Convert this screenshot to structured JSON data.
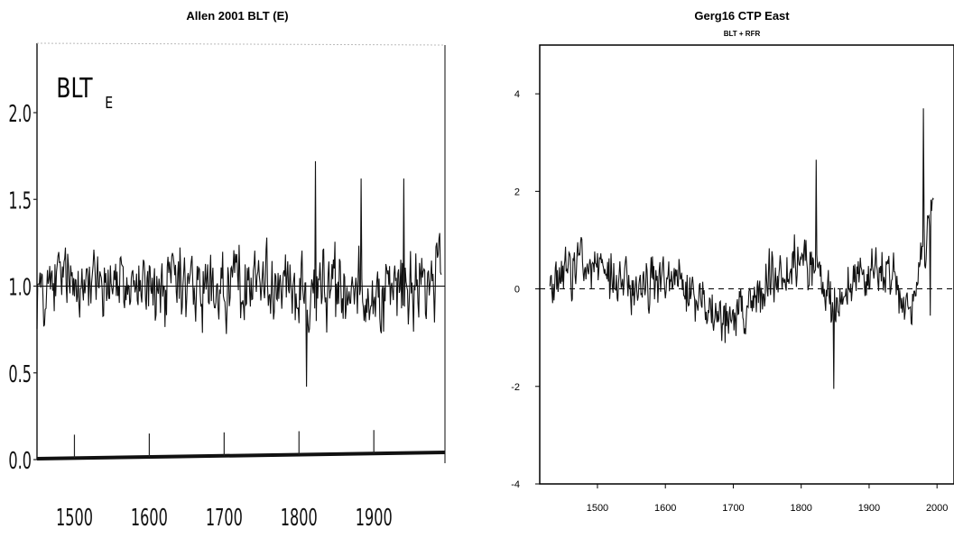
{
  "chart_data": [
    {
      "type": "line",
      "title": "Allen 2001 BLT (E)",
      "annotation": {
        "main": "BLT",
        "subscript": "E"
      },
      "xlim": [
        1450,
        1995
      ],
      "ylim": [
        0.0,
        2.4
      ],
      "x_ticks": [
        1500,
        1600,
        1700,
        1800,
        1900
      ],
      "x_tick_labels": [
        "1500",
        "1600",
        "1700",
        "1800",
        "1900"
      ],
      "y_ticks": [
        0.0,
        0.5,
        1.0,
        1.5,
        2.0
      ],
      "y_tick_labels": [
        "0.0",
        "0.5",
        "1.0",
        "1.5",
        "2.0"
      ],
      "reference_line": 1.0,
      "grid": false,
      "series": [
        {
          "x_range": [
            1450,
            1990
          ],
          "mean": 1.0,
          "amplitude": 0.3,
          "peaks": [
            [
              1822,
              1.72
            ],
            [
              1810,
              0.42
            ],
            [
              1883,
              1.62
            ],
            [
              1940,
              1.62
            ]
          ]
        }
      ]
    },
    {
      "type": "line",
      "title": "Gerg16 CTP East",
      "subtitle": "BLT + RFR",
      "xlim": [
        1415,
        2025
      ],
      "ylim": [
        -4,
        5
      ],
      "x_ticks": [
        1500,
        1600,
        1700,
        1800,
        1900,
        2000
      ],
      "x_tick_labels": [
        "1500",
        "1600",
        "1700",
        "1800",
        "1900",
        "2000"
      ],
      "y_ticks": [
        -4,
        -2,
        0,
        2,
        4
      ],
      "y_tick_labels": [
        "-4",
        "-2",
        "0",
        "2",
        "4"
      ],
      "reference_line": 0,
      "grid": false,
      "series": [
        {
          "x_range": [
            1430,
            1995
          ],
          "mean": 0,
          "amplitude": 0.7,
          "peaks": [
            [
              1822,
              2.65
            ],
            [
              1848,
              -2.05
            ],
            [
              1980,
              3.7
            ],
            [
              1990,
              -0.55
            ]
          ]
        }
      ]
    }
  ]
}
